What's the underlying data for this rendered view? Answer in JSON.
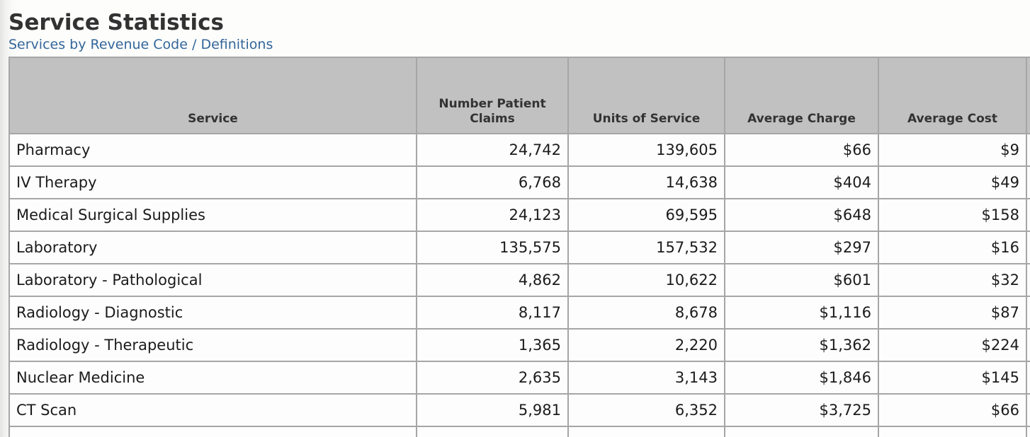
{
  "page": {
    "title": "Service Statistics",
    "links": [
      {
        "label": "Services by Revenue Code"
      },
      {
        "label": "Definitions"
      }
    ],
    "link_separator": "/"
  },
  "colors": {
    "link_blue": "#336699",
    "title_text": "#323232",
    "header_bg": "#c1c1c1",
    "table_border": "#a6a6a6",
    "cell_bg": "#fdfdfd"
  },
  "table": {
    "columns": [
      {
        "label": "Service"
      },
      {
        "label": "Number Patient Claims"
      },
      {
        "label": "Units of Service"
      },
      {
        "label": "Average Charge"
      },
      {
        "label": "Average Cost"
      }
    ],
    "rows": [
      [
        "Pharmacy",
        "24,742",
        "139,605",
        "$66",
        "$9"
      ],
      [
        "IV Therapy",
        "6,768",
        "14,638",
        "$404",
        "$49"
      ],
      [
        "Medical Surgical Supplies",
        "24,123",
        "69,595",
        "$648",
        "$158"
      ],
      [
        "Laboratory",
        "135,575",
        "157,532",
        "$297",
        "$16"
      ],
      [
        "Laboratory - Pathological",
        "4,862",
        "10,622",
        "$601",
        "$32"
      ],
      [
        "Radiology - Diagnostic",
        "8,117",
        "8,678",
        "$1,116",
        "$87"
      ],
      [
        "Radiology - Therapeutic",
        "1,365",
        "2,220",
        "$1,362",
        "$224"
      ],
      [
        "Nuclear Medicine",
        "2,635",
        "3,143",
        "$1,846",
        "$145"
      ],
      [
        "CT Scan",
        "5,981",
        "6,352",
        "$3,725",
        "$66"
      ]
    ]
  }
}
